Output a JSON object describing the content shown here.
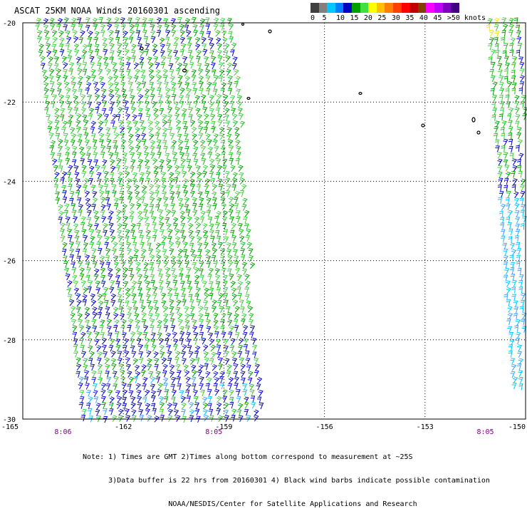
{
  "title": "ASCAT 25KM NOAA Winds 20160301 ascending",
  "legend": {
    "colors": [
      "#404040",
      "#808080",
      "#00c8ff",
      "#0080ff",
      "#0000c0",
      "#00a000",
      "#40e040",
      "#ffff00",
      "#ffc000",
      "#ff8000",
      "#ff4000",
      "#ff0000",
      "#c00000",
      "#804000",
      "#ff00ff",
      "#c000ff",
      "#8000c0",
      "#400080"
    ],
    "labels": [
      "0",
      "5",
      "10",
      "15",
      "20",
      "25",
      "30",
      "35",
      "40",
      "45",
      ">50 knots"
    ]
  },
  "chart_data": {
    "type": "wind_barbs",
    "xlim": [
      -165,
      -150
    ],
    "ylim": [
      -30,
      -20
    ],
    "x_ticks": [
      "-165",
      "-162",
      "-159",
      "-156",
      "-153",
      "-150"
    ],
    "y_ticks": [
      "-20",
      "-22",
      "-24",
      "-26",
      "-28",
      "-30"
    ],
    "time_labels": [
      {
        "lon": -163.8,
        "text": "8:06"
      },
      {
        "lon": -159.3,
        "text": "8:05"
      },
      {
        "lon": -151.2,
        "text": "8:05"
      }
    ],
    "swaths": [
      {
        "name": "west",
        "lon_west_top": -164.6,
        "lon_east_top": -158.7,
        "lon_west_bottom": -163.2,
        "lon_east_bottom": -157.9
      },
      {
        "name": "east",
        "lon_west_top": -151.1,
        "lon_east_top": -150.0,
        "lon_west_bottom": -150.3,
        "lon_east_bottom": -150.0
      }
    ]
  },
  "notes": [
    "Note: 1) Times are GMT 2)Times along bottom correspond to measurement at ~25S",
    "      3)Data buffer is 22 hrs from 20160301 4) Black wind barbs indicate possible contamination",
    "                    NOAA/NESDIS/Center for Satellite Applications and Research"
  ]
}
